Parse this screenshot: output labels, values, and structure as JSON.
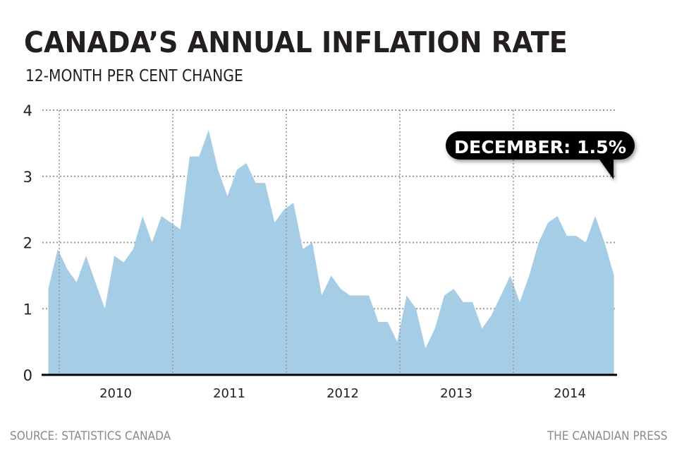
{
  "title": "CANADA’S ANNUAL INFLATION RATE",
  "subtitle": "12-MONTH PER CENT CHANGE",
  "footer": {
    "source": "SOURCE: STATISTICS CANADA",
    "credit": "THE CANADIAN PRESS"
  },
  "colors": {
    "area": "#a6cde6",
    "text": "#231f20",
    "grid": "#9a9a9a",
    "callout": "#000000"
  },
  "chart_data": {
    "type": "area",
    "title": "CANADA’S ANNUAL INFLATION RATE",
    "subtitle": "12-MONTH PER CENT CHANGE",
    "x_start": "2009-12",
    "x_end": "2014-12",
    "x_frequency": "monthly",
    "x_tick_labels": [
      "2010",
      "2011",
      "2012",
      "2013",
      "2014"
    ],
    "y_ticks": [
      0,
      1,
      2,
      3,
      4
    ],
    "ylim": [
      0,
      4
    ],
    "grid": true,
    "values": [
      1.3,
      1.9,
      1.6,
      1.4,
      1.8,
      1.4,
      1.0,
      1.8,
      1.7,
      1.9,
      2.4,
      2.0,
      2.4,
      2.3,
      2.2,
      3.3,
      3.3,
      3.7,
      3.1,
      2.7,
      3.1,
      3.2,
      2.9,
      2.9,
      2.3,
      2.5,
      2.6,
      1.9,
      2.0,
      1.2,
      1.5,
      1.3,
      1.2,
      1.2,
      1.2,
      0.8,
      0.8,
      0.5,
      1.2,
      1.0,
      0.4,
      0.7,
      1.2,
      1.3,
      1.1,
      1.1,
      0.7,
      0.9,
      1.2,
      1.5,
      1.1,
      1.5,
      2.0,
      2.3,
      2.4,
      2.1,
      2.1,
      2.0,
      2.4,
      2.0,
      1.5
    ],
    "annotation": "DECEMBER: 1.5%"
  }
}
